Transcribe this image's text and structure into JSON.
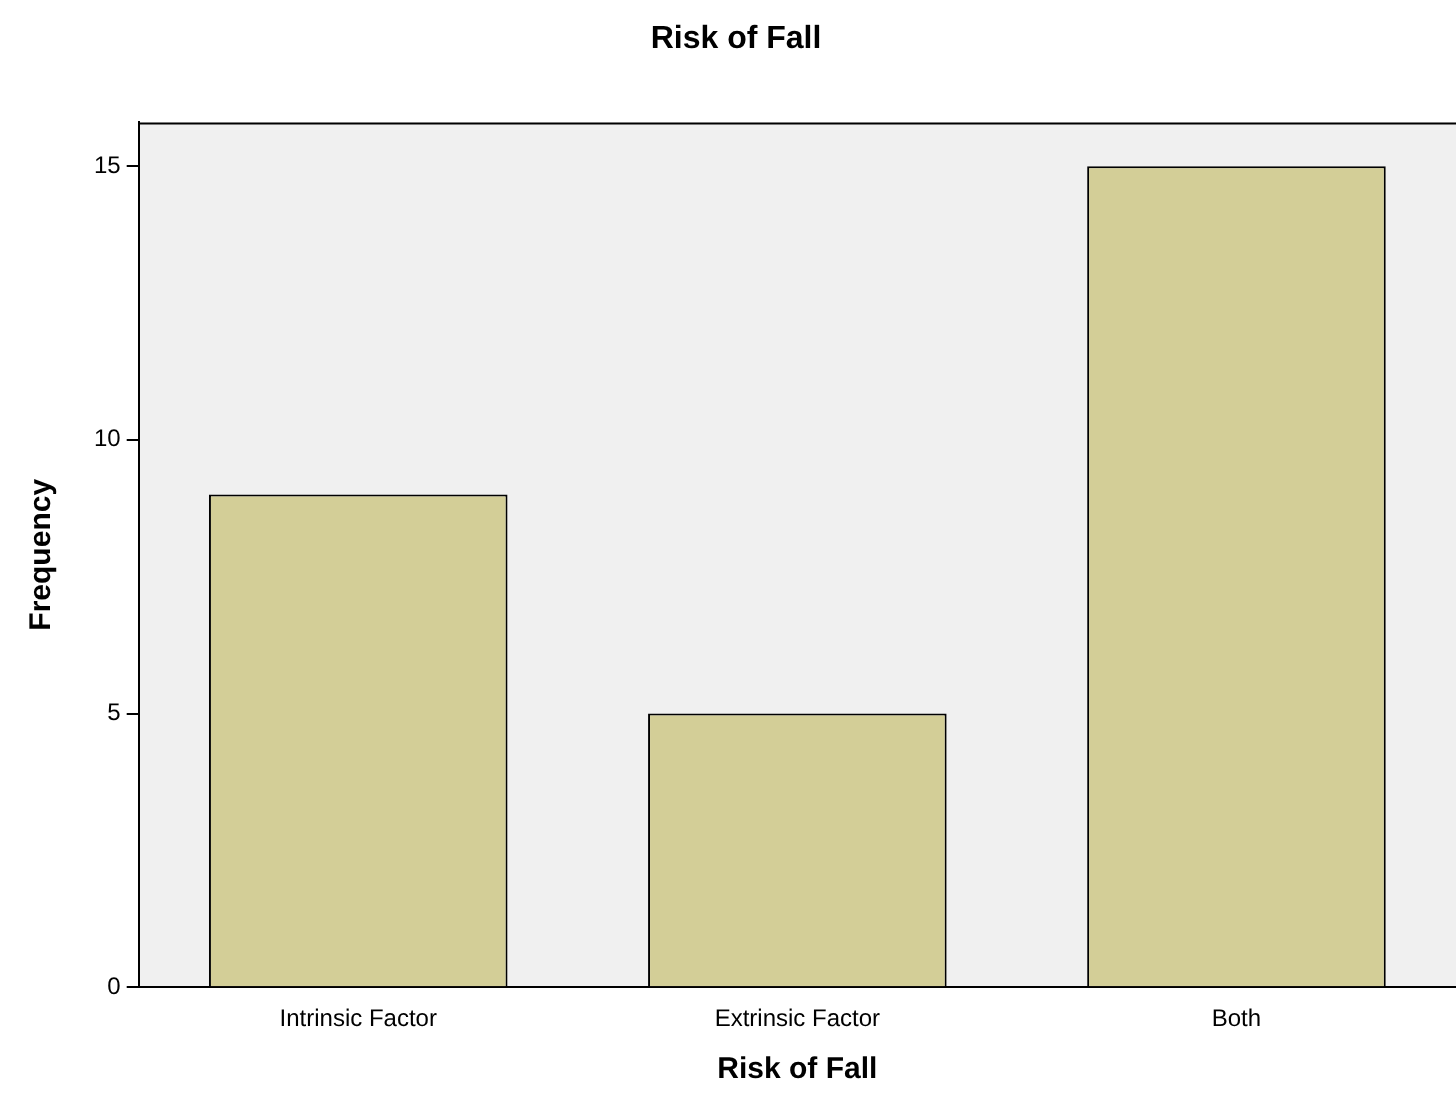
{
  "chart_data": {
    "type": "bar",
    "title": "Risk of Fall",
    "xlabel": "Risk of Fall",
    "ylabel": "Frequency",
    "categories": [
      "Intrinsic Factor",
      "Extrinsic Factor",
      "Both"
    ],
    "values": [
      9,
      5,
      15
    ],
    "color": "#d3ce97",
    "ylim": [
      0,
      15.8
    ],
    "yticks": [
      0,
      5,
      10,
      15
    ],
    "grid": false,
    "legend": false
  }
}
